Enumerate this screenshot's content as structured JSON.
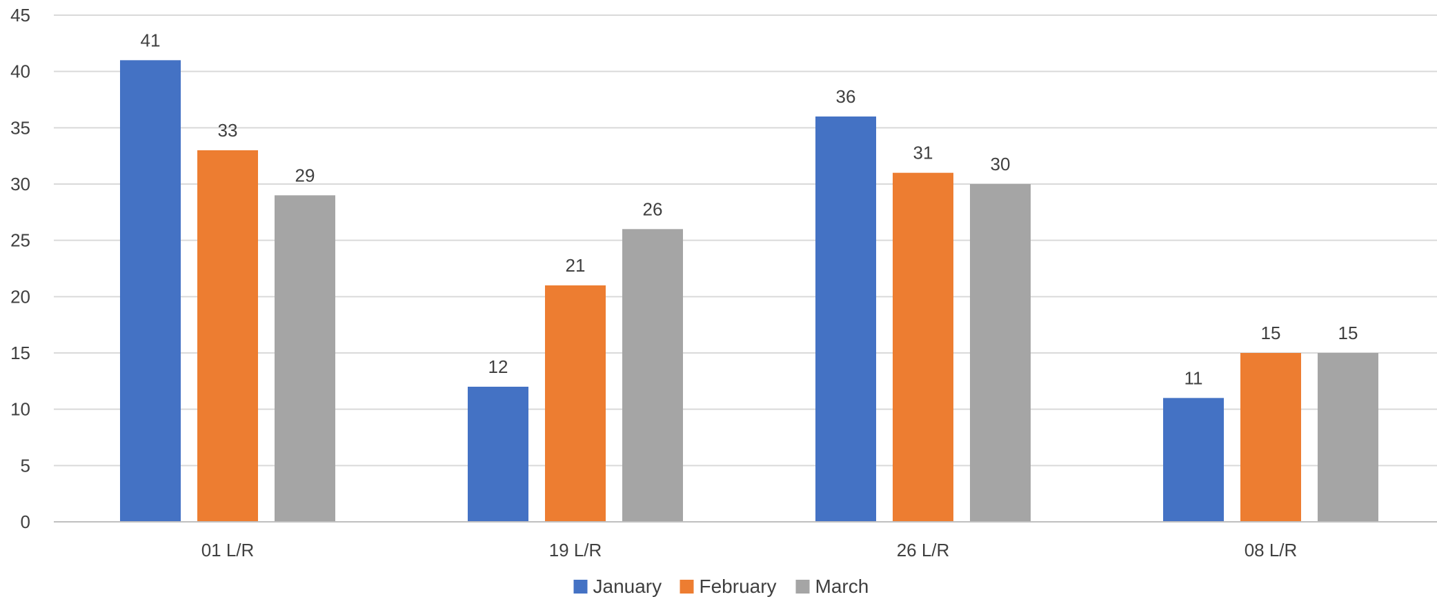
{
  "chart_data": {
    "type": "bar",
    "categories": [
      "01 L/R",
      "19 L/R",
      "26 L/R",
      "08 L/R"
    ],
    "series": [
      {
        "name": "January",
        "values": [
          41,
          12,
          36,
          11
        ],
        "color": "#4472C4"
      },
      {
        "name": "February",
        "values": [
          33,
          21,
          31,
          15
        ],
        "color": "#ED7D31"
      },
      {
        "name": "March",
        "values": [
          29,
          26,
          30,
          15
        ],
        "color": "#A5A5A5"
      }
    ],
    "title": "",
    "xlabel": "",
    "ylabel": "",
    "ylim": [
      0,
      45
    ],
    "yticks": [
      0,
      5,
      10,
      15,
      20,
      25,
      30,
      35,
      40,
      45
    ],
    "grid": true,
    "legend_position": "bottom",
    "data_labels": true
  }
}
